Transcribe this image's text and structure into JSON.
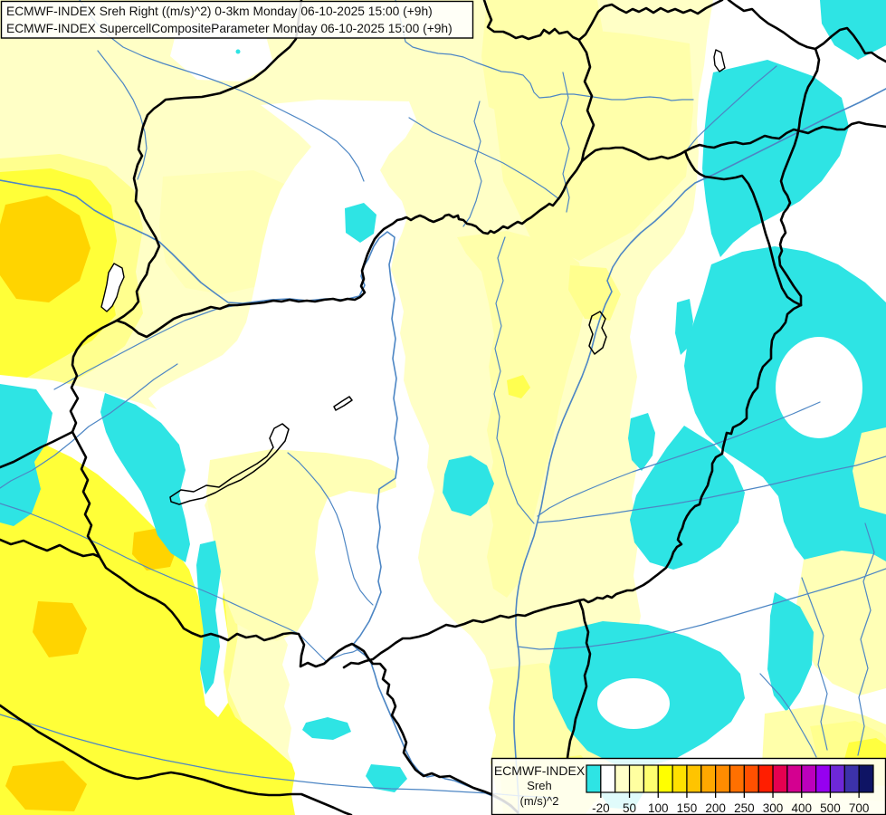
{
  "header": {
    "line1": "ECMWF-INDEX Sreh Right ((m/s)^2) 0-3km Monday 06-10-2025 15:00 (+9h)",
    "line2": "ECMWF-INDEX SupercellCompositeParameter Monday 06-10-2025 15:00 (+9h)"
  },
  "legend": {
    "title_line1": "ECMWF-INDEX",
    "title_line2": "Sreh",
    "title_line3": "(m/s)^2",
    "tick_labels": [
      "-20",
      "50",
      "100",
      "150",
      "200",
      "250",
      "300",
      "400",
      "500",
      "700"
    ],
    "colors": [
      "#2ee4e4",
      "#ffffff",
      "#ffffc8",
      "#ffffa0",
      "#ffff70",
      "#ffff00",
      "#ffe000",
      "#ffc400",
      "#ffa800",
      "#ff8c00",
      "#ff7000",
      "#ff5000",
      "#ff1e00",
      "#e60050",
      "#d40090",
      "#bc00bc",
      "#9600f0",
      "#6e28d8",
      "#3c32aa",
      "#0f1464"
    ]
  },
  "map": {
    "description": "Filled contour map of storm-relative helicity over Hungary and surrounding countries",
    "palette": {
      "pale_bg": "#ffffc6",
      "pale_2": "#ffffaa",
      "pale_3": "#ffffb6",
      "halo_yellow": "#ffff8e",
      "bright_yellow": "#ffff38",
      "bright_spot": "#ffff50",
      "bottom_bright": "#ffff78",
      "corner_core": "#ffff3f",
      "gold": "#ffd400",
      "white": "#ffffff",
      "cyan": "#2ee4e4",
      "river_blue": "#4d86c4",
      "border_black": "#000000"
    }
  }
}
